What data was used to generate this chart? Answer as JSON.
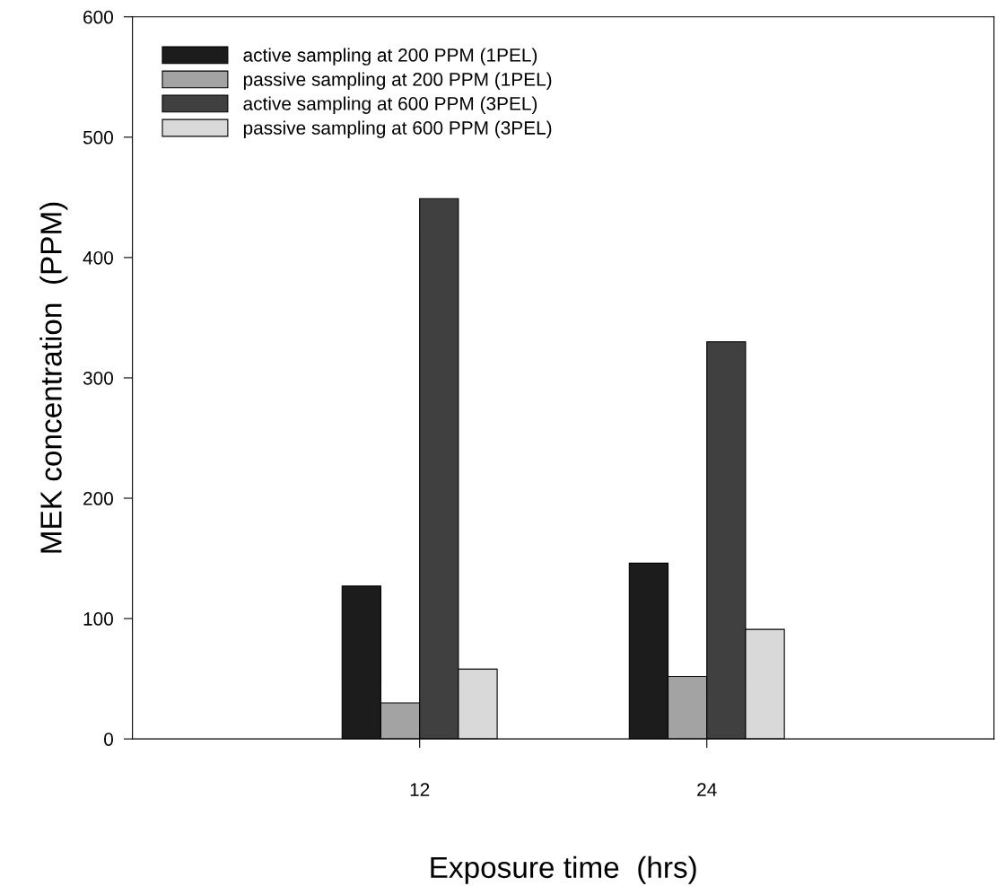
{
  "chart_data": {
    "type": "bar",
    "xlabel": "Exposure time  (hrs)",
    "ylabel": "MEK concentration  (PPM)",
    "x": [
      12,
      24
    ],
    "xlim": [
      0,
      36
    ],
    "xticks": [
      12,
      24
    ],
    "ylim": [
      0,
      600
    ],
    "yticks": [
      0,
      100,
      200,
      300,
      400,
      500,
      600
    ],
    "series": [
      {
        "name": "active sampling at 200 PPM (1PEL)",
        "color": "#1c1c1c",
        "values": [
          127,
          146
        ]
      },
      {
        "name": "passive sampling at 200 PPM (1PEL)",
        "color": "#a3a3a3",
        "values": [
          30,
          52
        ]
      },
      {
        "name": "active sampling at 600 PPM (3PEL)",
        "color": "#404040",
        "values": [
          449,
          330
        ]
      },
      {
        "name": "passive sampling at 600 PPM (3PEL)",
        "color": "#d9d9d9",
        "values": [
          58,
          91
        ]
      }
    ],
    "legend": "top left",
    "grid": false
  }
}
